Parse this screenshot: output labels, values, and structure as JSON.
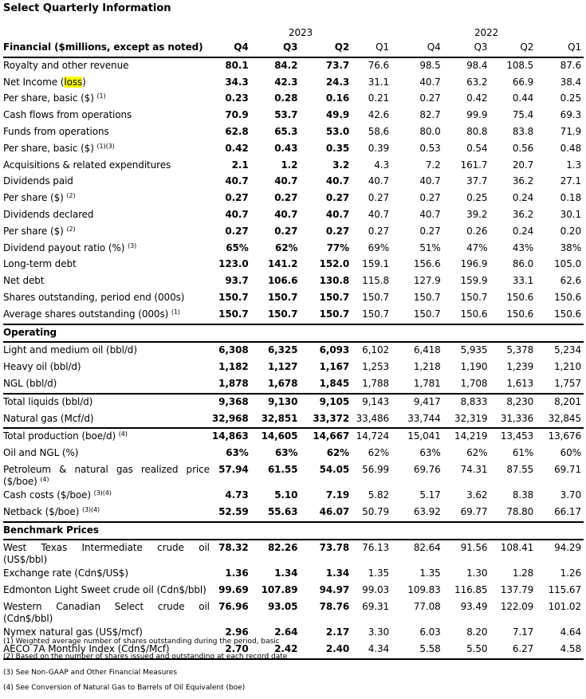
{
  "title": "Select Quarterly Information",
  "years": [
    "2023",
    "2022"
  ],
  "header": {
    "label": "Financial ($millions, except as noted)",
    "quarters": [
      "Q4",
      "Q3",
      "Q2",
      "Q1",
      "Q4",
      "Q3",
      "Q2",
      "Q1"
    ]
  },
  "sections": [
    {
      "name": "",
      "rows": [
        {
          "label": "Royalty and other revenue",
          "values": [
            "80.1",
            "84.2",
            "73.7",
            "76.6",
            "98.5",
            "98.4",
            "108.5",
            "87.6"
          ]
        },
        {
          "label": "Net Income (",
          "highlight": "loss",
          "label_after": ")",
          "values": [
            "34.3",
            "42.3",
            "24.3",
            "31.1",
            "40.7",
            "63.2",
            "66.9",
            "38.4"
          ]
        },
        {
          "label": "Per share, basic ($)",
          "note": "(1)",
          "values": [
            "0.23",
            "0.28",
            "0.16",
            "0.21",
            "0.27",
            "0.42",
            "0.44",
            "0.25"
          ]
        },
        {
          "label": "Cash flows from operations",
          "values": [
            "70.9",
            "53.7",
            "49.9",
            "42.6",
            "82.7",
            "99.9",
            "75.4",
            "69.3"
          ]
        },
        {
          "label": "Funds from operations",
          "values": [
            "62.8",
            "65.3",
            "53.0",
            "58.6",
            "80.0",
            "80.8",
            "83.8",
            "71.9"
          ]
        },
        {
          "label": "Per share, basic ($)",
          "note": "(1)(3)",
          "values": [
            "0.42",
            "0.43",
            "0.35",
            "0.39",
            "0.53",
            "0.54",
            "0.56",
            "0.48"
          ]
        },
        {
          "label": "Acquisitions & related expenditures",
          "values": [
            "2.1",
            "1.2",
            "3.2",
            "4.3",
            "7.2",
            "161.7",
            "20.7",
            "1.3"
          ]
        },
        {
          "label": "Dividends paid",
          "values": [
            "40.7",
            "40.7",
            "40.7",
            "40.7",
            "40.7",
            "37.7",
            "36.2",
            "27.1"
          ]
        },
        {
          "label": "Per share ($)",
          "note": "(2)",
          "values": [
            "0.27",
            "0.27",
            "0.27",
            "0.27",
            "0.27",
            "0.25",
            "0.24",
            "0.18"
          ]
        },
        {
          "label": "Dividends declared",
          "values": [
            "40.7",
            "40.7",
            "40.7",
            "40.7",
            "40.7",
            "39.2",
            "36.2",
            "30.1"
          ]
        },
        {
          "label": "Per share ($)",
          "note": "(2)",
          "values": [
            "0.27",
            "0.27",
            "0.27",
            "0.27",
            "0.27",
            "0.26",
            "0.24",
            "0.20"
          ]
        },
        {
          "label": "Dividend payout ratio (%)",
          "note": "(3)",
          "values": [
            "65%",
            "62%",
            "77%",
            "69%",
            "51%",
            "47%",
            "43%",
            "38%"
          ]
        },
        {
          "label": "Long-term debt",
          "values": [
            "123.0",
            "141.2",
            "152.0",
            "159.1",
            "156.6",
            "196.9",
            "86.0",
            "105.0"
          ]
        },
        {
          "label": "Net debt",
          "values": [
            "93.7",
            "106.6",
            "130.8",
            "115.8",
            "127.9",
            "159.9",
            "33.1",
            "62.6"
          ]
        },
        {
          "label": "Shares outstanding, period end (000s)",
          "values": [
            "150.7",
            "150.7",
            "150.7",
            "150.7",
            "150.7",
            "150.7",
            "150.6",
            "150.6"
          ]
        },
        {
          "label": "Average shares outstanding (000s)",
          "note": "(1)",
          "values": [
            "150.7",
            "150.7",
            "150.7",
            "150.7",
            "150.7",
            "150.6",
            "150.6",
            "150.6"
          ]
        }
      ]
    },
    {
      "name": "Operating",
      "rows": [
        {
          "label": "Light and medium oil (bbl/d)",
          "values": [
            "6,308",
            "6,325",
            "6,093",
            "6,102",
            "6,418",
            "5,935",
            "5,378",
            "5,234"
          ]
        },
        {
          "label": "Heavy oil (bbl/d)",
          "values": [
            "1,182",
            "1,127",
            "1,167",
            "1,253",
            "1,218",
            "1,190",
            "1,239",
            "1,210"
          ]
        },
        {
          "label": "NGL (bbl/d)",
          "values": [
            "1,878",
            "1,678",
            "1,845",
            "1,788",
            "1,781",
            "1,708",
            "1,613",
            "1,757"
          ]
        },
        {
          "label": "Total liquids (bbl/d)",
          "rule": true,
          "values": [
            "9,368",
            "9,130",
            "9,105",
            "9,143",
            "9,417",
            "8,833",
            "8,230",
            "8,201"
          ]
        },
        {
          "label": "Natural gas (Mcf/d)",
          "values": [
            "32,968",
            "32,851",
            "33,372",
            "33,486",
            "33,744",
            "32,319",
            "31,336",
            "32,845"
          ]
        },
        {
          "label": "Total production (boe/d)",
          "note": "(4)",
          "rule": true,
          "values": [
            "14,863",
            "14,605",
            "14,667",
            "14,724",
            "15,041",
            "14,219",
            "13,453",
            "13,676"
          ]
        },
        {
          "label": "Oil and NGL (%)",
          "values": [
            "63%",
            "63%",
            "62%",
            "62%",
            "63%",
            "62%",
            "61%",
            "60%"
          ]
        },
        {
          "label": "Petroleum & natural gas realized price ($/boe)",
          "note": "(4)",
          "values": [
            "57.94",
            "61.55",
            "54.05",
            "56.99",
            "69.76",
            "74.31",
            "87.55",
            "69.71"
          ]
        },
        {
          "label": "Cash costs ($/boe)",
          "note": "(3)(4)",
          "values": [
            "4.73",
            "5.10",
            "7.19",
            "5.82",
            "5.17",
            "3.62",
            "8.38",
            "3.70"
          ]
        },
        {
          "label": "Netback ($/boe)",
          "note": "(3)(4)",
          "values": [
            "52.59",
            "55.63",
            "46.07",
            "50.79",
            "63.92",
            "69.77",
            "78.80",
            "66.17"
          ]
        }
      ]
    },
    {
      "name": "Benchmark Prices",
      "rows": [
        {
          "label": "West Texas Intermediate crude oil (US$/bbl)",
          "values": [
            "78.32",
            "82.26",
            "73.78",
            "76.13",
            "82.64",
            "91.56",
            "108.41",
            "94.29"
          ]
        },
        {
          "label": "Exchange rate (Cdn$/US$)",
          "values": [
            "1.36",
            "1.34",
            "1.34",
            "1.35",
            "1.35",
            "1.30",
            "1.28",
            "1.26"
          ]
        },
        {
          "label": "Edmonton Light Sweet crude oil (Cdn$/bbl)",
          "values": [
            "99.69",
            "107.89",
            "94.97",
            "99.03",
            "109.83",
            "116.85",
            "137.79",
            "115.67"
          ]
        },
        {
          "label": "Western Canadian Select crude oil (Cdn$/bbl)",
          "values": [
            "76.96",
            "93.05",
            "78.76",
            "69.31",
            "77.08",
            "93.49",
            "122.09",
            "101.02"
          ]
        },
        {
          "label": "Nymex natural gas (US$/mcf)",
          "values": [
            "2.96",
            "2.64",
            "2.17",
            "3.30",
            "6.03",
            "8.20",
            "7.17",
            "4.64"
          ]
        },
        {
          "label": "AECO 7A Monthly Index (Cdn$/Mcf)",
          "values": [
            "2.70",
            "2.42",
            "2.40",
            "4.34",
            "5.58",
            "5.50",
            "6.27",
            "4.58"
          ]
        }
      ]
    }
  ],
  "footnotes": [
    "(1) Weighted average number of shares outstanding during the period, basic",
    "(2) Based on the number of shares issued and outstanding at each record date",
    "(3) See Non-GAAP and Other Financial Measures",
    "(4) See Conversion of Natural Gas to Barrels of Oil Equivalent (boe)"
  ]
}
